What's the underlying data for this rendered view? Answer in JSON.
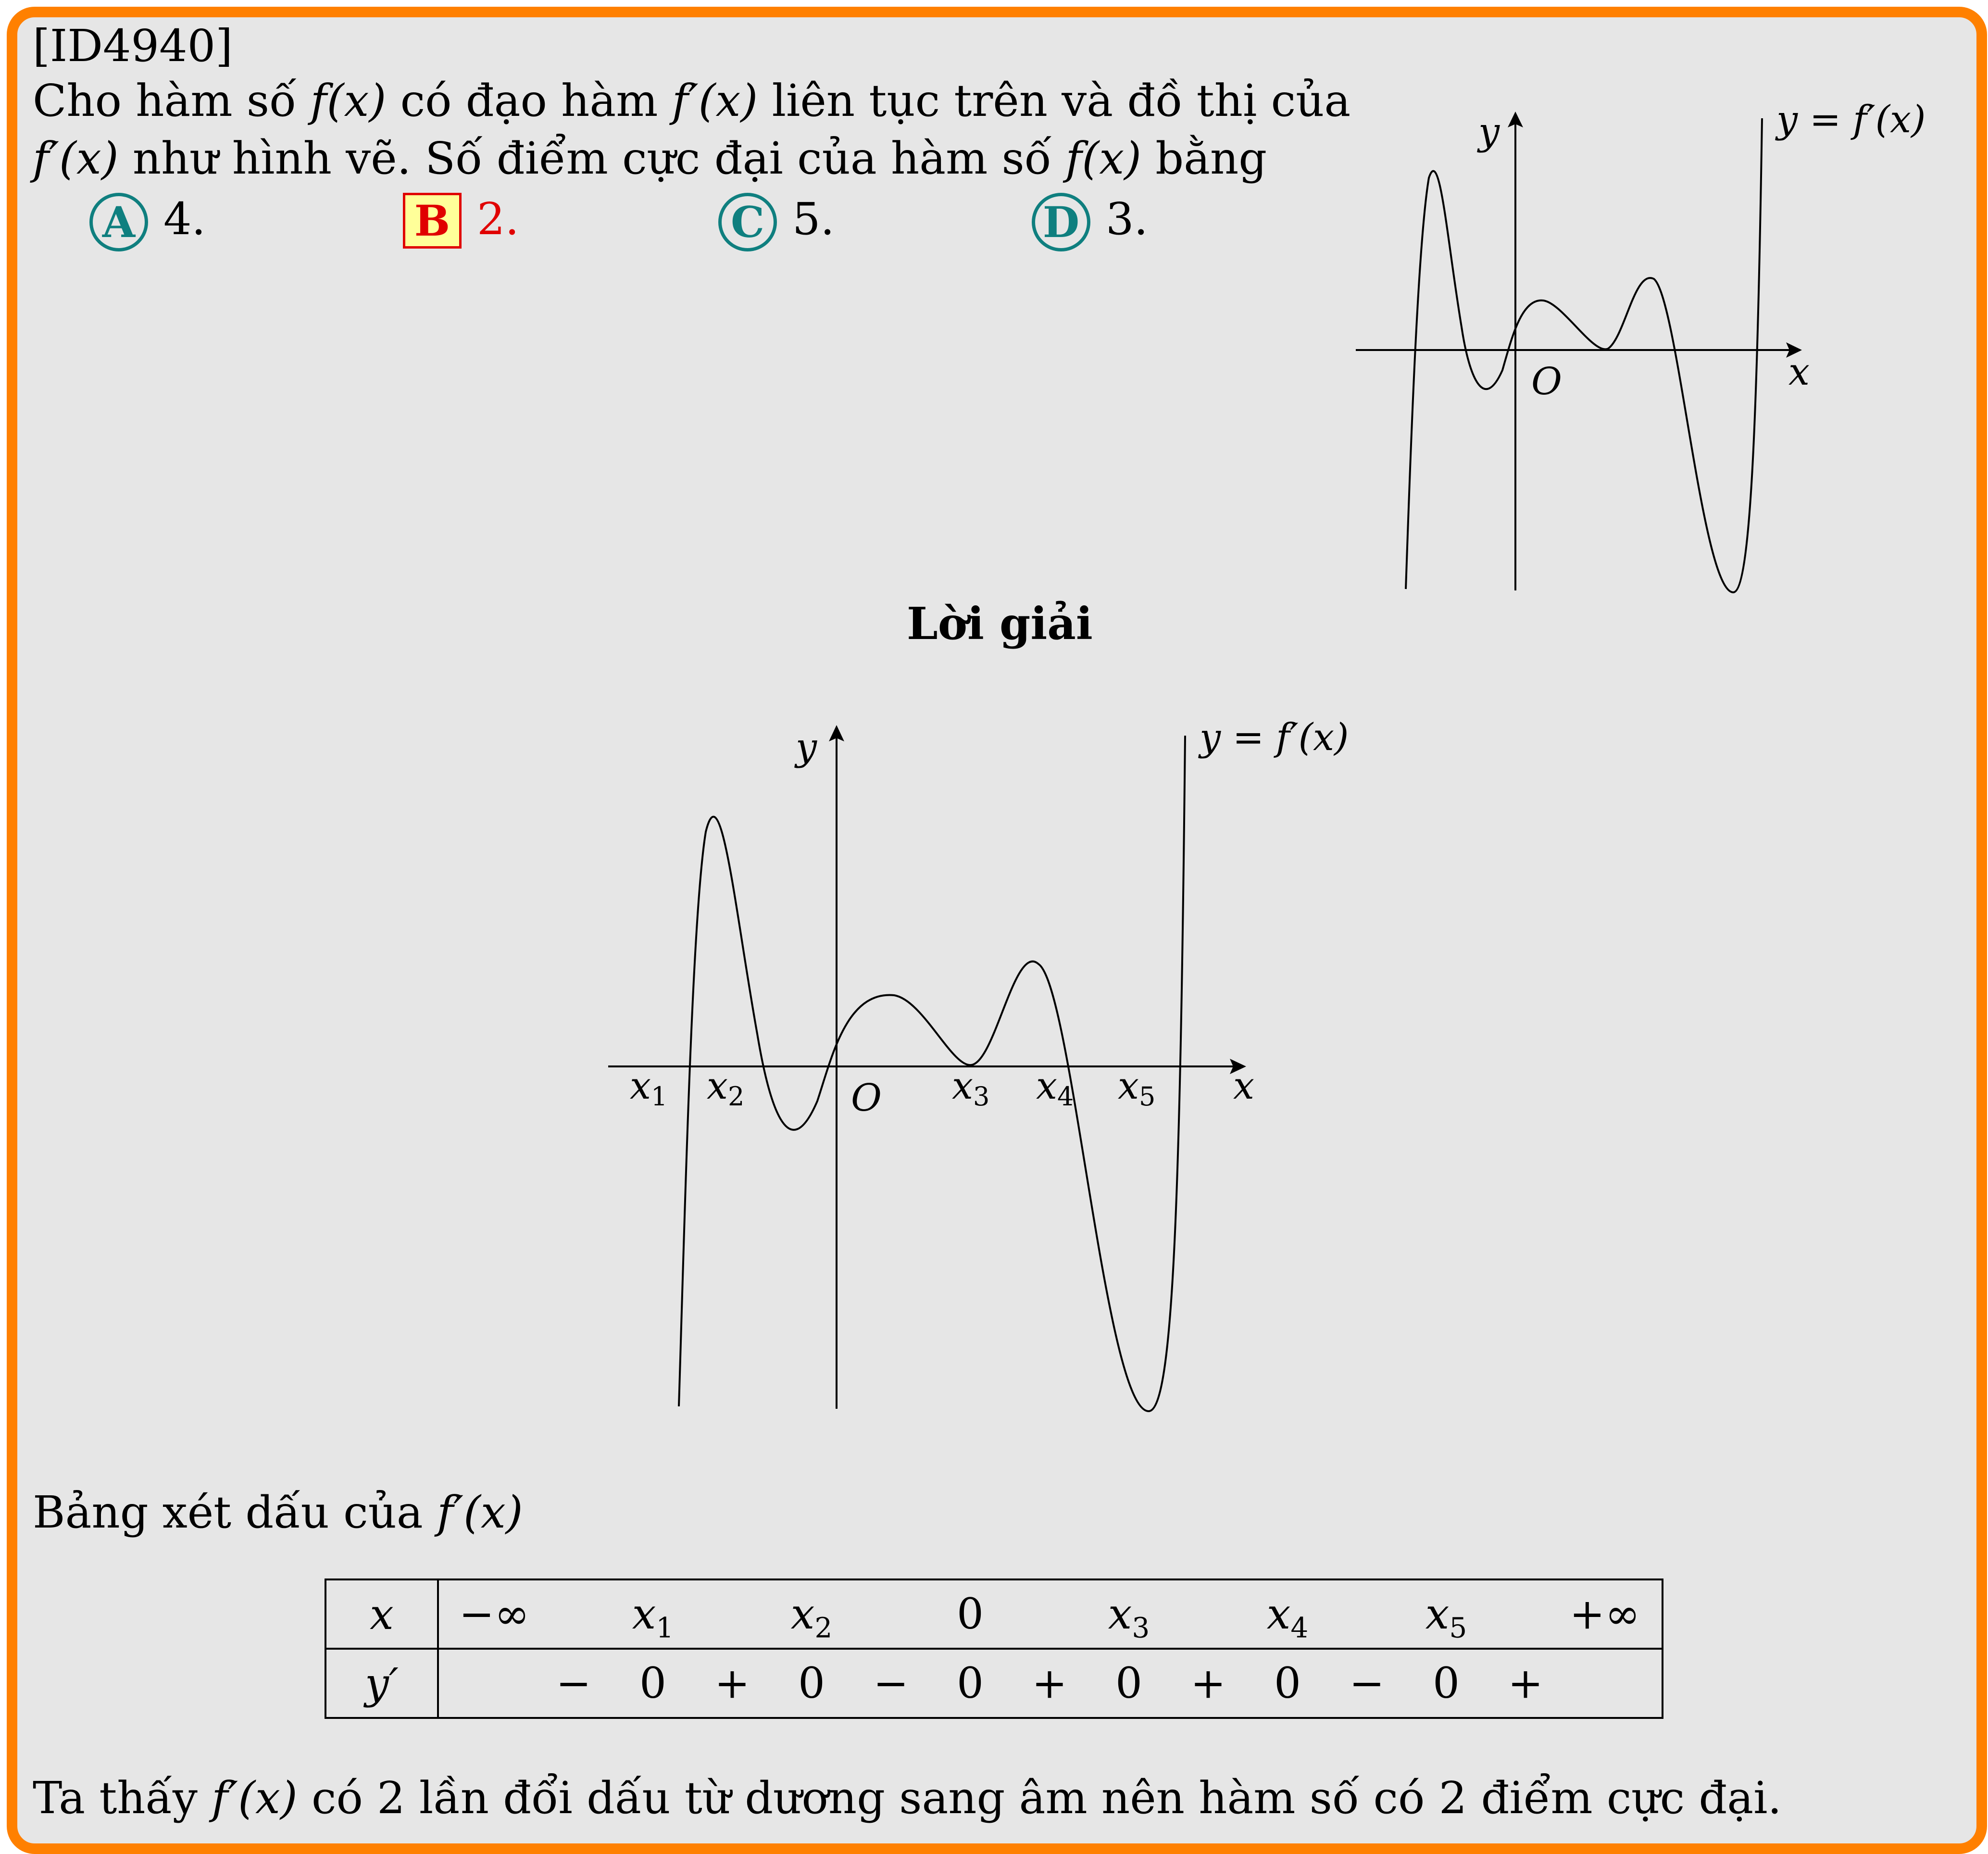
{
  "question": {
    "id": "[ID4940]",
    "line1_a": "Cho hàm số ",
    "line1_f": "f(x)",
    "line1_b": " có đạo hàm ",
    "line1_fp": "f′(x)",
    "line1_c": " liên tục trên và đồ thị của",
    "line2_fp": "f′(x)",
    "line2_a": " như hình vẽ. Số điểm cực đại của hàm số ",
    "line2_f": "f(x)",
    "line2_b": " bằng",
    "options": [
      {
        "letter": "A",
        "text": "4."
      },
      {
        "letter": "B",
        "text": "2.",
        "correct": true
      },
      {
        "letter": "C",
        "text": "5."
      },
      {
        "letter": "D",
        "text": "3."
      }
    ]
  },
  "graph_labels": {
    "y_axis": "y",
    "x_axis": "x",
    "origin": "O",
    "curve": "y = f′(x)",
    "roots": [
      "x1",
      "x2",
      "x3",
      "x4",
      "x5"
    ]
  },
  "solution": {
    "title": "Lời giải",
    "table_intro_a": "Bảng xét dấu của ",
    "table_intro_fp": "f′(x)",
    "conclusion_a": "Ta thấy ",
    "conclusion_fp": "f′(x)",
    "conclusion_b": " có 2 lần đổi dấu từ dương sang âm nên hàm số có 2 điểm cực đại."
  },
  "sign_table": {
    "row1_label": "x",
    "row1_values": [
      "−∞",
      "x",
      "x",
      "0",
      "x",
      "x",
      "x",
      "+∞"
    ],
    "row1_subs": [
      "",
      "1",
      "2",
      "",
      "3",
      "4",
      "5",
      ""
    ],
    "row2_label": "y′",
    "row2_values": [
      "−",
      "0",
      "+",
      "0",
      "−",
      "0",
      "+",
      "0",
      "+",
      "0",
      "−",
      "0",
      "+"
    ]
  }
}
